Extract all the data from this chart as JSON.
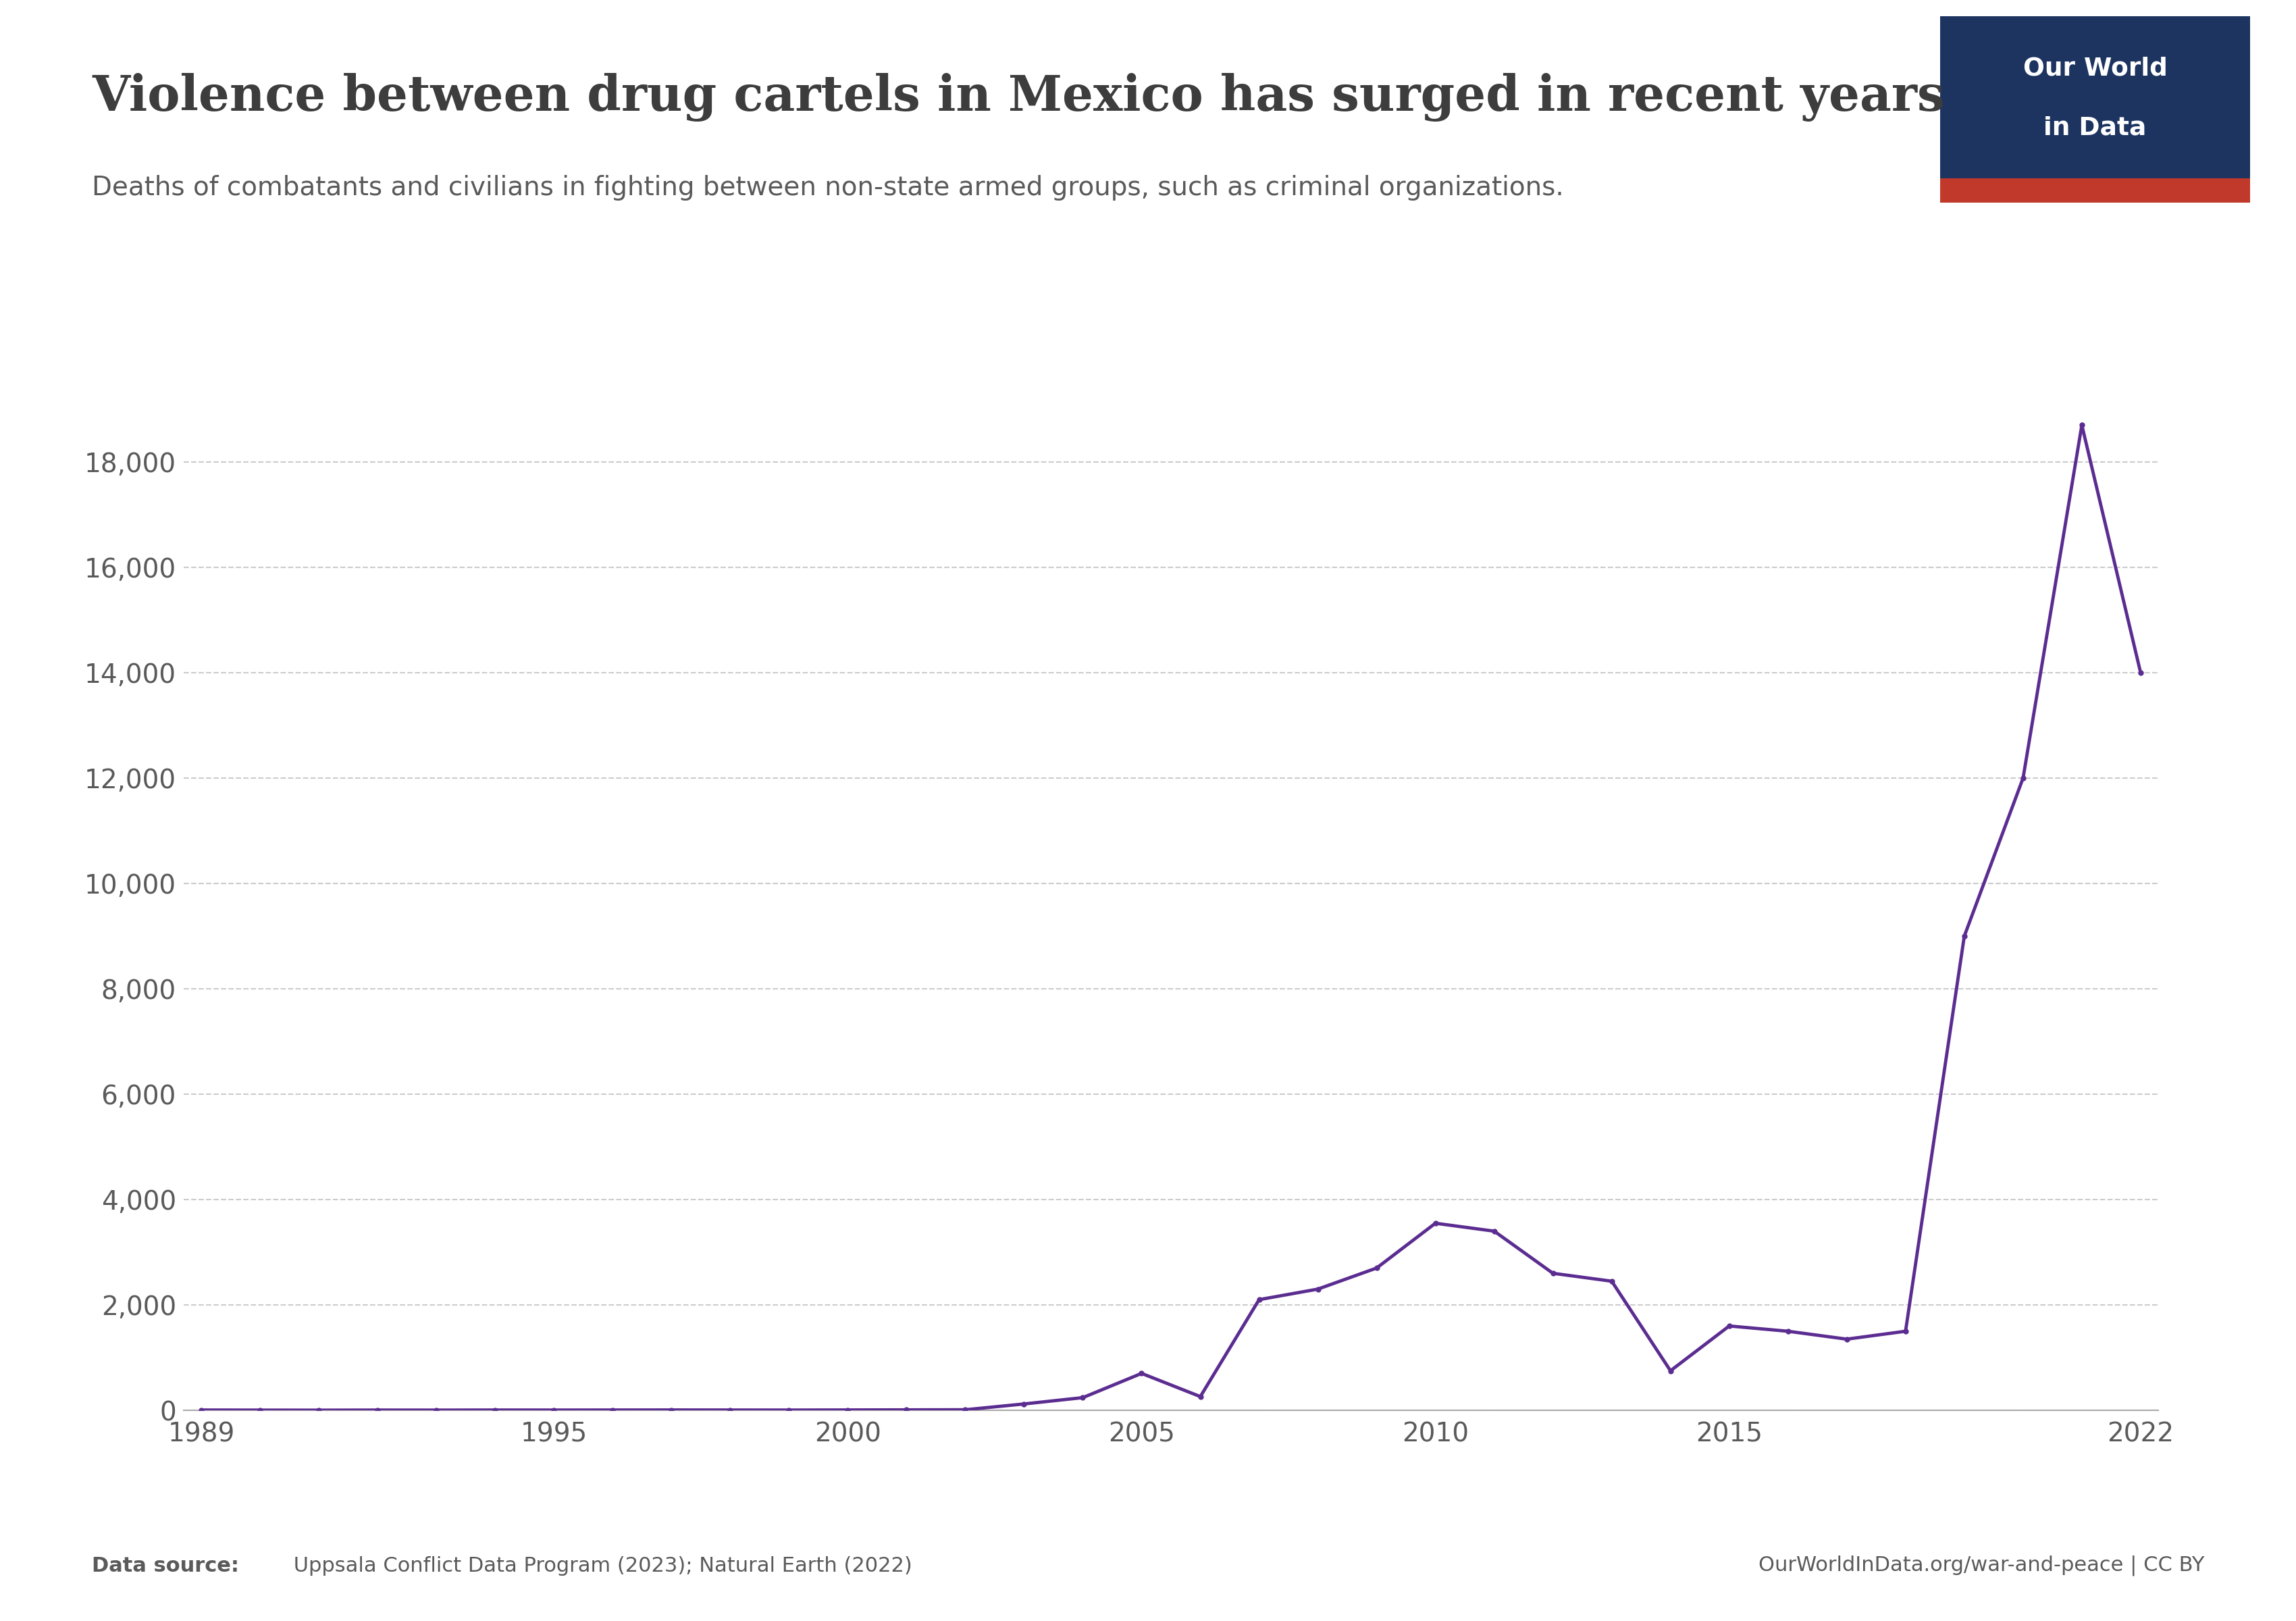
{
  "title": "Violence between drug cartels in Mexico has surged in recent years",
  "subtitle": "Deaths of combatants and civilians in fighting between non-state armed groups, such as criminal organizations.",
  "source_left_bold": "Data source:",
  "source_left_normal": " Uppsala Conflict Data Program (2023); Natural Earth (2022)",
  "source_right": "OurWorldInData.org/war-and-peace | CC BY",
  "line_color": "#5c2d91",
  "background_color": "#ffffff",
  "years": [
    1989,
    1990,
    1991,
    1992,
    1993,
    1994,
    1995,
    1996,
    1997,
    1998,
    1999,
    2000,
    2001,
    2002,
    2003,
    2004,
    2005,
    2006,
    2007,
    2008,
    2009,
    2010,
    2011,
    2012,
    2013,
    2014,
    2015,
    2016,
    2017,
    2018,
    2019,
    2020,
    2021,
    2022
  ],
  "deaths": [
    5,
    3,
    2,
    4,
    3,
    5,
    4,
    5,
    6,
    5,
    4,
    6,
    8,
    10,
    120,
    240,
    700,
    260,
    2100,
    2300,
    2700,
    3550,
    3400,
    2600,
    2450,
    750,
    1600,
    1500,
    1350,
    1500,
    9000,
    12000,
    18700,
    14000
  ],
  "xlim_min": 1989,
  "xlim_max": 2022,
  "ylim_min": 0,
  "ylim_max": 20000,
  "yticks": [
    0,
    2000,
    4000,
    6000,
    8000,
    10000,
    12000,
    14000,
    16000,
    18000
  ],
  "xticks": [
    1989,
    1995,
    2000,
    2005,
    2010,
    2015,
    2022
  ],
  "logo_text_line1": "Our World",
  "logo_text_line2": "in Data",
  "logo_bg_color": "#1d3461",
  "logo_stripe_color": "#c0392b",
  "title_color": "#3d3d3d",
  "subtitle_color": "#5a5a5a",
  "axis_color": "#aaaaaa",
  "grid_color": "#cccccc",
  "tick_label_color": "#5a5a5a",
  "source_color": "#5a5a5a",
  "line_width": 3.5,
  "marker_size": 5,
  "title_fontsize": 52,
  "subtitle_fontsize": 28,
  "tick_fontsize": 28,
  "source_fontsize": 22,
  "logo_fontsize": 27
}
